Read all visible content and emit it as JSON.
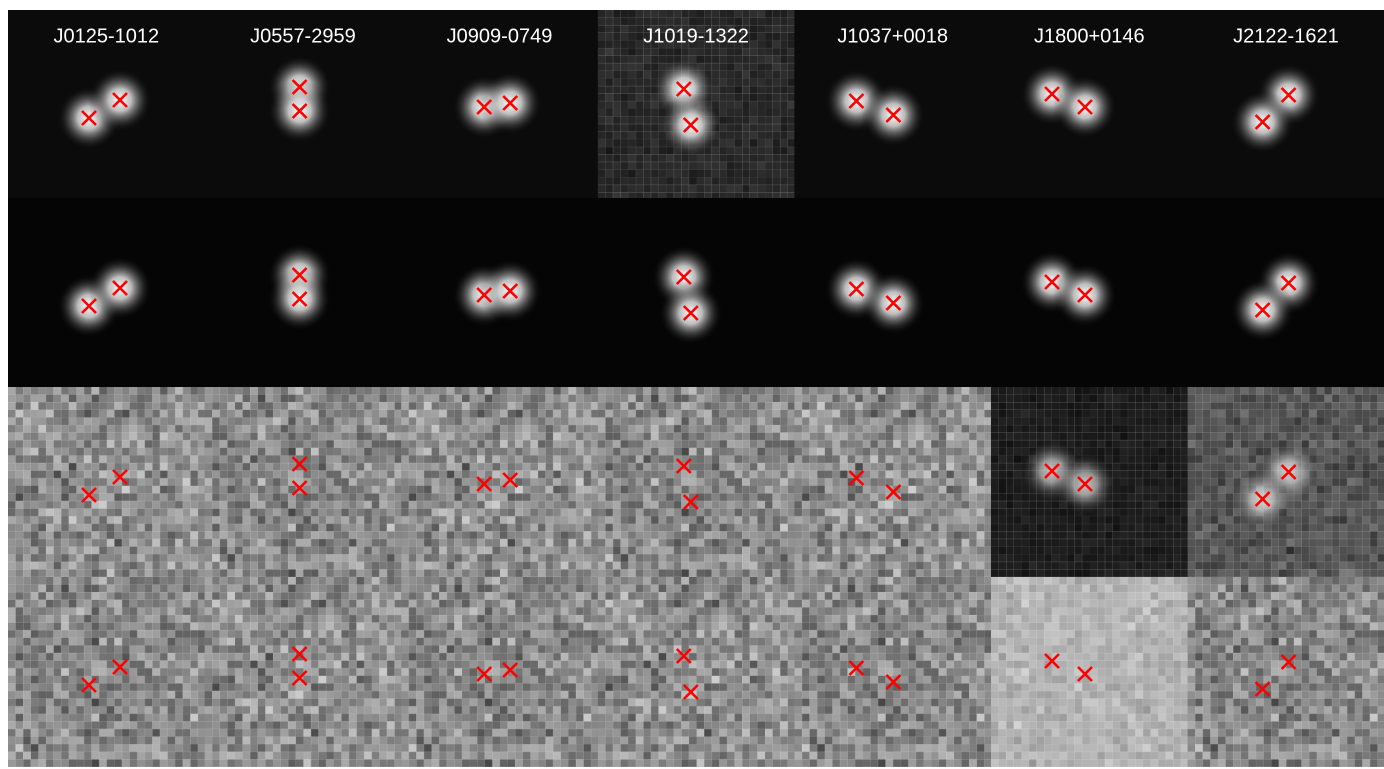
{
  "labels": [
    "J0125-1012",
    "J0557-2959",
    "J0909-0749",
    "J1019-1322",
    "J1037+0018",
    "J1800+0146",
    "J2122-1621"
  ]
}
